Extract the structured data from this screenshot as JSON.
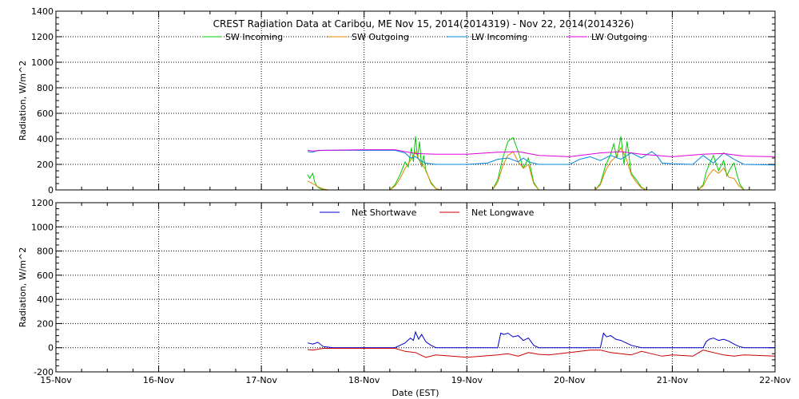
{
  "chart_data": [
    {
      "type": "line",
      "title": "CREST Radiation Data at Caribou, ME   Nov 15, 2014(2014319) - Nov 22, 2014(2014326)",
      "ylabel": "Radiation, W/m^2",
      "xlabel": "",
      "xlim": [
        0,
        7
      ],
      "ylim": [
        0,
        1400
      ],
      "yticks": [
        0,
        200,
        400,
        600,
        800,
        1000,
        1200,
        1400
      ],
      "xtick_labels": [],
      "grid": true,
      "legend": "top",
      "series": [
        {
          "name": "SW Incoming",
          "color": "#00cc00",
          "x": [
            2.45,
            2.47,
            2.5,
            2.52,
            2.54,
            2.56,
            2.6,
            2.65,
            3.25,
            3.3,
            3.35,
            3.4,
            3.43,
            3.46,
            3.48,
            3.5,
            3.52,
            3.54,
            3.56,
            3.58,
            3.6,
            3.65,
            3.7,
            3.75,
            4.25,
            4.3,
            4.35,
            4.4,
            4.45,
            4.5,
            4.55,
            4.6,
            4.65,
            4.7,
            5.25,
            5.3,
            5.35,
            5.4,
            5.43,
            5.46,
            5.5,
            5.53,
            5.56,
            5.6,
            5.65,
            5.7,
            5.75,
            6.25,
            6.3,
            6.33,
            6.36,
            6.4,
            6.45,
            6.5,
            6.53,
            6.56,
            6.6,
            6.63,
            6.66,
            6.7
          ],
          "y": [
            120,
            90,
            130,
            60,
            30,
            15,
            5,
            0,
            0,
            40,
            120,
            220,
            180,
            330,
            220,
            420,
            250,
            380,
            180,
            270,
            150,
            60,
            10,
            0,
            0,
            80,
            250,
            380,
            410,
            300,
            170,
            250,
            60,
            0,
            0,
            50,
            190,
            280,
            360,
            250,
            420,
            200,
            380,
            130,
            80,
            20,
            0,
            0,
            40,
            140,
            200,
            270,
            150,
            230,
            110,
            160,
            210,
            120,
            40,
            0
          ]
        },
        {
          "name": "SW Outgoing",
          "color": "#dd8800",
          "x": [
            2.45,
            2.5,
            2.55,
            2.6,
            2.65,
            3.25,
            3.3,
            3.35,
            3.4,
            3.45,
            3.5,
            3.55,
            3.6,
            3.65,
            3.7,
            3.75,
            4.25,
            4.3,
            4.35,
            4.4,
            4.45,
            4.5,
            4.55,
            4.6,
            4.65,
            4.7,
            5.25,
            5.3,
            5.35,
            5.4,
            5.45,
            5.5,
            5.55,
            5.6,
            5.65,
            5.7,
            5.75,
            6.25,
            6.3,
            6.35,
            6.4,
            6.45,
            6.5,
            6.55,
            6.6,
            6.65,
            6.7
          ],
          "y": [
            70,
            50,
            25,
            8,
            0,
            0,
            30,
            90,
            170,
            230,
            300,
            210,
            160,
            50,
            8,
            0,
            0,
            60,
            190,
            270,
            300,
            220,
            170,
            200,
            50,
            0,
            0,
            40,
            150,
            220,
            260,
            330,
            250,
            120,
            60,
            15,
            0,
            0,
            30,
            110,
            160,
            130,
            170,
            100,
            90,
            30,
            0
          ]
        },
        {
          "name": "LW Incoming",
          "color": "#0088dd",
          "x": [
            2.45,
            2.5,
            2.55,
            2.6,
            2.7,
            3.0,
            3.3,
            3.4,
            3.45,
            3.5,
            3.55,
            3.6,
            3.7,
            4.0,
            4.2,
            4.3,
            4.4,
            4.5,
            4.55,
            4.6,
            4.7,
            4.8,
            5.0,
            5.1,
            5.2,
            5.3,
            5.4,
            5.5,
            5.6,
            5.7,
            5.8,
            5.85,
            5.9,
            6.0,
            6.2,
            6.3,
            6.4,
            6.5,
            6.6,
            6.7,
            7.0
          ],
          "y": [
            300,
            295,
            310,
            310,
            310,
            310,
            310,
            290,
            250,
            260,
            230,
            210,
            200,
            200,
            210,
            240,
            250,
            220,
            250,
            220,
            200,
            200,
            200,
            240,
            260,
            230,
            270,
            240,
            290,
            250,
            300,
            270,
            210,
            205,
            200,
            270,
            210,
            290,
            240,
            200,
            195
          ]
        },
        {
          "name": "LW Outgoing",
          "color": "#dd00dd",
          "x": [
            2.45,
            2.5,
            2.6,
            3.0,
            3.3,
            3.5,
            3.7,
            4.0,
            4.3,
            4.5,
            4.7,
            5.0,
            5.3,
            5.5,
            5.7,
            6.0,
            6.3,
            6.5,
            6.7,
            7.0
          ],
          "y": [
            310,
            305,
            310,
            315,
            315,
            285,
            280,
            280,
            295,
            300,
            270,
            260,
            290,
            300,
            280,
            260,
            280,
            285,
            265,
            260
          ]
        }
      ]
    },
    {
      "type": "line",
      "title": "",
      "ylabel": "Radiation, W/m^2",
      "xlabel": "Date (EST)",
      "xlim": [
        0,
        7
      ],
      "ylim": [
        -200,
        1200
      ],
      "yticks": [
        -200,
        0,
        200,
        400,
        600,
        800,
        1000,
        1200
      ],
      "xtick_labels": [
        "15-Nov",
        "16-Nov",
        "17-Nov",
        "18-Nov",
        "19-Nov",
        "20-Nov",
        "21-Nov",
        "22-Nov"
      ],
      "grid": true,
      "legend": "top",
      "series": [
        {
          "name": "Net Shortwave",
          "color": "#0000cc",
          "x": [
            2.45,
            2.5,
            2.55,
            2.6,
            2.7,
            3.0,
            3.3,
            3.4,
            3.45,
            3.48,
            3.5,
            3.53,
            3.56,
            3.6,
            3.65,
            3.7,
            4.0,
            4.3,
            4.33,
            4.36,
            4.4,
            4.45,
            4.5,
            4.55,
            4.6,
            4.65,
            4.7,
            5.0,
            5.3,
            5.33,
            5.36,
            5.4,
            5.45,
            5.5,
            5.55,
            5.6,
            5.65,
            5.7,
            6.0,
            6.3,
            6.33,
            6.36,
            6.4,
            6.45,
            6.5,
            6.55,
            6.6,
            6.65,
            6.7,
            7.0
          ],
          "y": [
            40,
            30,
            45,
            10,
            0,
            0,
            0,
            40,
            80,
            60,
            130,
            70,
            110,
            50,
            20,
            0,
            0,
            0,
            120,
            110,
            120,
            90,
            100,
            60,
            80,
            20,
            0,
            0,
            0,
            120,
            90,
            100,
            70,
            60,
            40,
            20,
            10,
            0,
            0,
            0,
            50,
            70,
            80,
            60,
            70,
            55,
            30,
            10,
            0,
            0
          ]
        },
        {
          "name": "Net Longwave",
          "color": "#cc0000",
          "x": [
            2.45,
            2.5,
            2.6,
            3.0,
            3.3,
            3.4,
            3.5,
            3.6,
            3.7,
            4.0,
            4.3,
            4.4,
            4.5,
            4.6,
            4.7,
            4.8,
            5.0,
            5.1,
            5.2,
            5.3,
            5.4,
            5.5,
            5.6,
            5.7,
            5.8,
            5.9,
            6.0,
            6.2,
            6.3,
            6.4,
            6.5,
            6.6,
            6.7,
            7.0
          ],
          "y": [
            -15,
            -20,
            -5,
            -5,
            -5,
            -30,
            -40,
            -80,
            -60,
            -80,
            -60,
            -50,
            -70,
            -40,
            -55,
            -60,
            -40,
            -30,
            -20,
            -20,
            -40,
            -50,
            -60,
            -30,
            -50,
            -70,
            -60,
            -70,
            -20,
            -40,
            -60,
            -70,
            -60,
            -70
          ]
        }
      ]
    }
  ]
}
